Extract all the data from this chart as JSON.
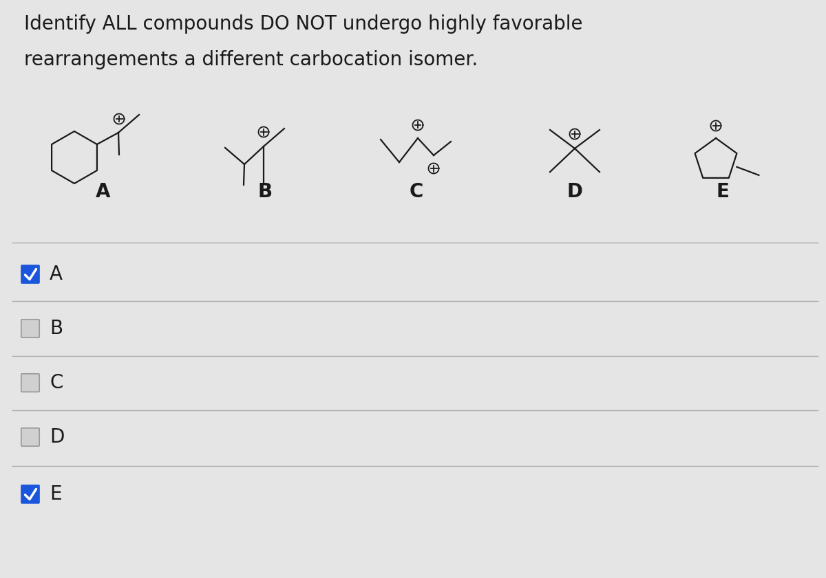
{
  "title_line1": "Identify ALL compounds DO NOT undergo highly favorable",
  "title_line2": "rearrangements a different carbocation isomer.",
  "bg_color": "#e5e5e5",
  "compound_labels": [
    "A",
    "B",
    "C",
    "D",
    "E"
  ],
  "options": [
    "A",
    "B",
    "C",
    "D",
    "E"
  ],
  "checked": [
    true,
    false,
    false,
    false,
    true
  ],
  "check_color": "#1a56db",
  "check_border": "#1a56db",
  "line_color": "#c8c8c8",
  "text_color": "#1a1a1a",
  "struct_color": "#1a1a1a",
  "title_fontsize": 20,
  "label_fontsize": 20,
  "option_fontsize": 20,
  "struct_lw": 1.6,
  "plus_r": 0.075
}
